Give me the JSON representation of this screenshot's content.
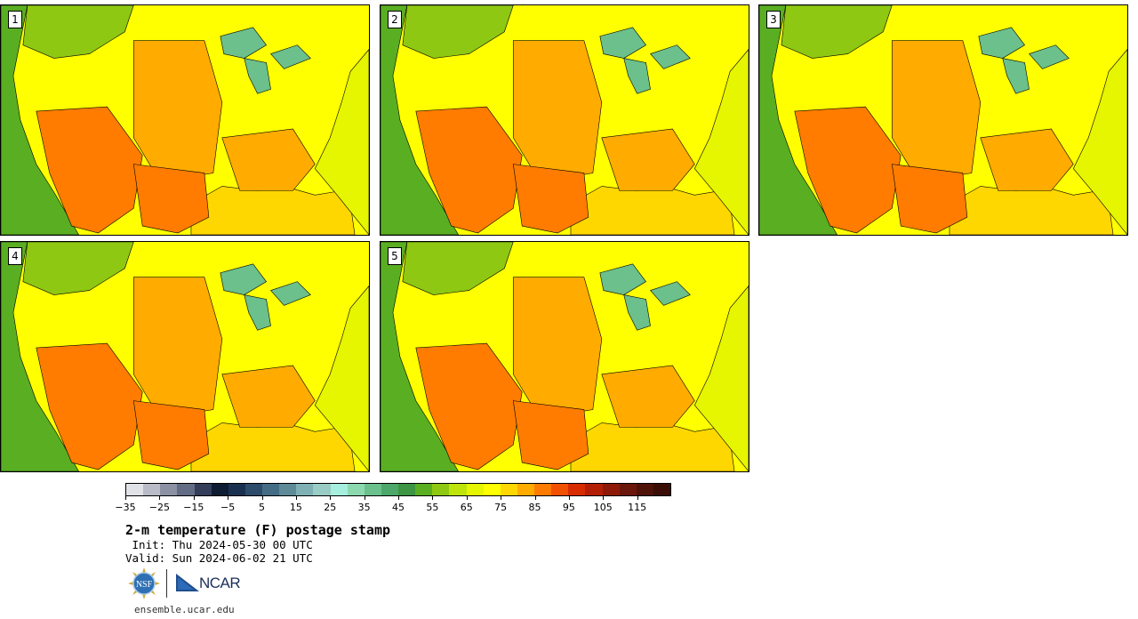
{
  "figure": {
    "title": "2-m temperature (F) postage stamp",
    "init": " Init: Thu 2024-05-30 00 UTC",
    "valid": "Valid: Sun 2024-06-02 21 UTC",
    "website": "ensemble.ucar.edu"
  },
  "panels": [
    {
      "label": "1"
    },
    {
      "label": "2"
    },
    {
      "label": "3"
    },
    {
      "label": "4"
    },
    {
      "label": "5"
    }
  ],
  "colorbar": {
    "tick_labels": [
      "−35",
      "−25",
      "−15",
      "−5",
      "5",
      "15",
      "25",
      "35",
      "45",
      "55",
      "65",
      "75",
      "85",
      "95",
      "105",
      "115"
    ],
    "tick_values": [
      -35,
      -25,
      -15,
      -5,
      5,
      15,
      25,
      35,
      45,
      55,
      65,
      75,
      85,
      95,
      105,
      115
    ],
    "range": [
      -35,
      125
    ],
    "step": 5,
    "colors": [
      "#e1e1e8",
      "#b9bbc7",
      "#8d91a4",
      "#626c84",
      "#343d5a",
      "#0d1b33",
      "#1a3050",
      "#2d4b6a",
      "#446c85",
      "#5f8a98",
      "#7fb0b4",
      "#99ccc4",
      "#a6eedd",
      "#8cd9b0",
      "#6bc08c",
      "#4ca86a",
      "#3d9442",
      "#5aae22",
      "#8ec812",
      "#bee40a",
      "#e6f500",
      "#ffff00",
      "#ffd700",
      "#ffab00",
      "#ff7c00",
      "#f05000",
      "#d82b00",
      "#b21f05",
      "#8e1908",
      "#6b160a",
      "#4e1208",
      "#3a0d06"
    ]
  },
  "logos": {
    "nsf": "NSF",
    "ncar": "NCAR"
  },
  "colors": {
    "ocean_atlantic": "#e6f500",
    "ocean_pacific": "#5aae22",
    "gulf": "#ffd700",
    "land_hot": "#ff7c00",
    "land_warm": "#ffab00",
    "land_cool": "#8ec812"
  }
}
